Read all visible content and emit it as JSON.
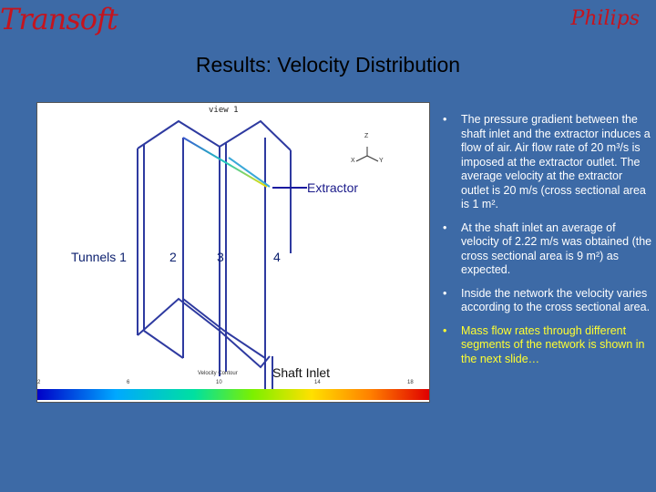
{
  "header": {
    "logo_left": "Transoft",
    "logo_right": "Philips",
    "title": "Results: Velocity Distribution"
  },
  "figure": {
    "view_label": "view 1",
    "axis_z": "Z",
    "axis_y": "Y",
    "axis_x": "X",
    "extractor_label": "Extractor",
    "shaft_inlet_label": "Shaft Inlet",
    "legend_caption": "Velocity Contour",
    "scale_ticks": [
      "2",
      "6",
      "10",
      "14",
      "18"
    ],
    "tunnels": [
      "Tunnels 1",
      "2",
      "3",
      "4"
    ],
    "colors": {
      "lines": "#2e3aa0",
      "extractor_pointer": "#1a1aa0",
      "scale": [
        "#0000c8",
        "#00a8ff",
        "#00e0a0",
        "#7cf000",
        "#ffe000",
        "#ff8000",
        "#e00000"
      ]
    }
  },
  "bullets": [
    {
      "text": "The pressure gradient between the shaft inlet and the extractor induces a flow of air. Air flow rate of 20 m³/s is imposed at the extractor outlet. The average velocity at the extractor outlet is 20 m/s (cross sectional area is 1 m².",
      "highlight": false
    },
    {
      "text": "At the shaft inlet an average of velocity of 2.22 m/s was obtained (the cross sectional area is 9 m²) as expected.",
      "highlight": false
    },
    {
      "text": "Inside the network the velocity varies according to the cross sectional area.",
      "highlight": false
    },
    {
      "text": "Mass flow rates through different segments of the network is shown in the next slide…",
      "highlight": true,
      "color": "#ffff30"
    }
  ]
}
